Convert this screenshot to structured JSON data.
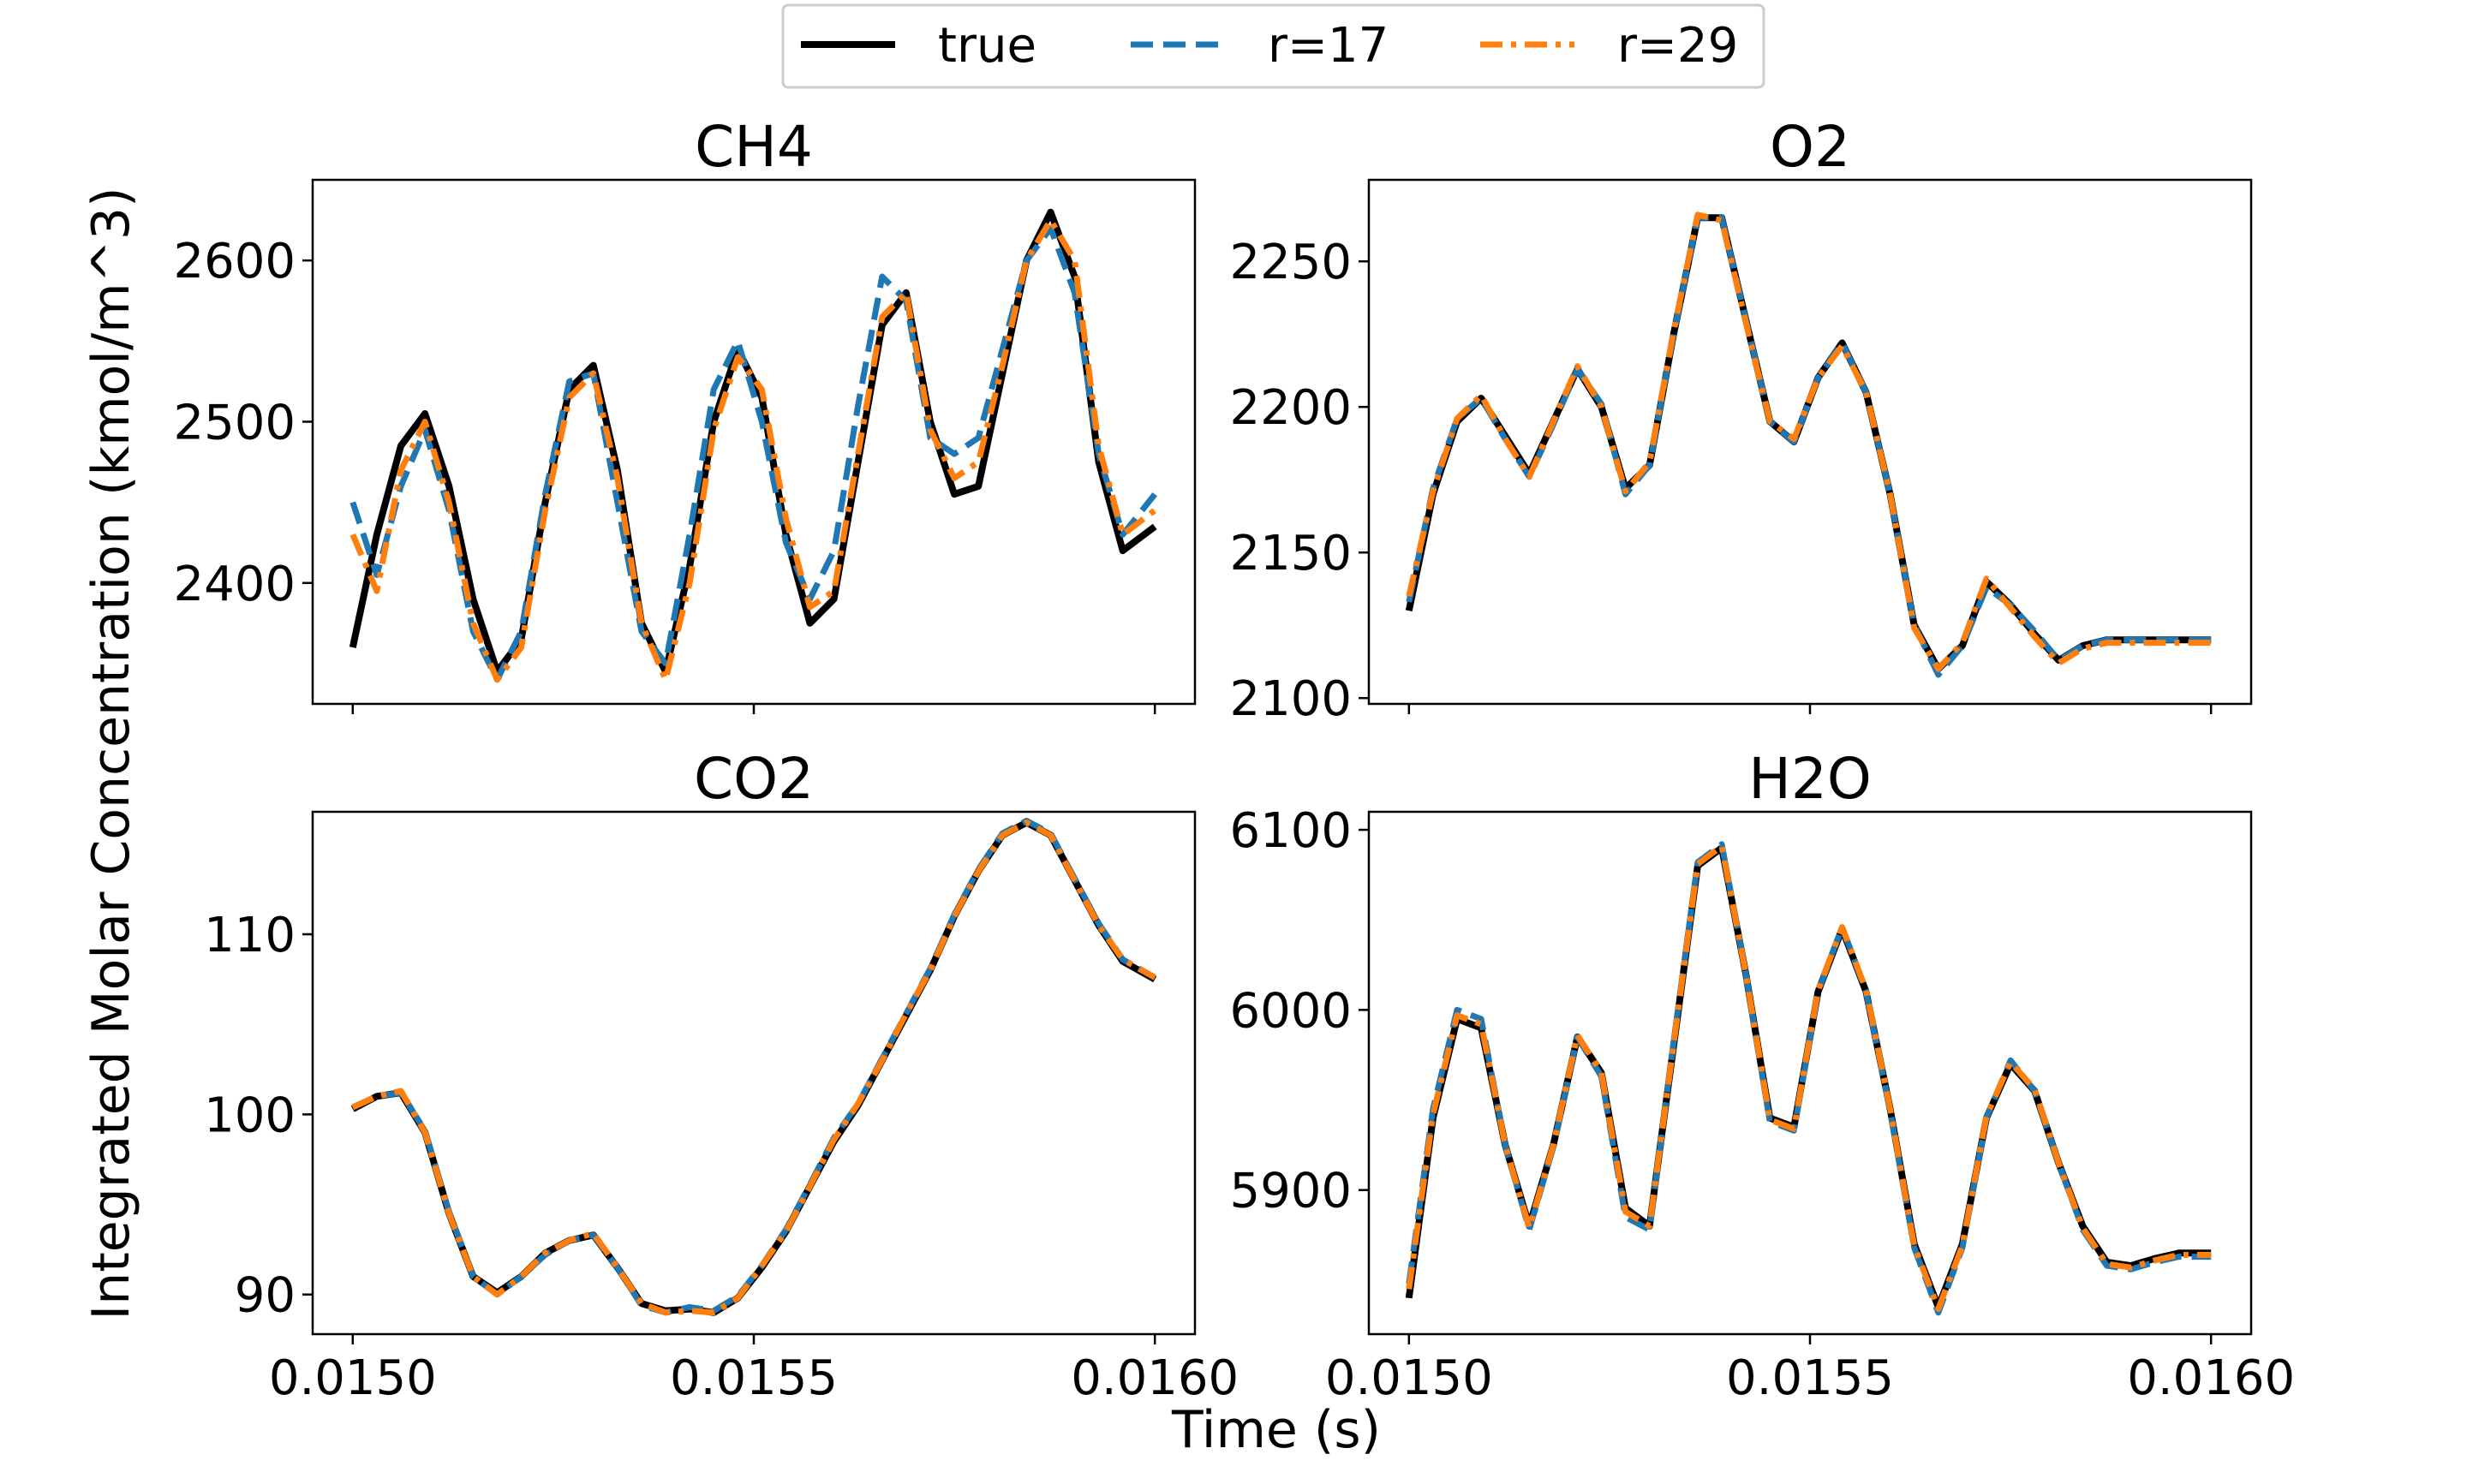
{
  "legend": {
    "entries": [
      {
        "label": "true",
        "color": "#000000",
        "style": "solid"
      },
      {
        "label": "r=17",
        "color": "#1f77b4",
        "style": "dashed"
      },
      {
        "label": "r=29",
        "color": "#ff7f0e",
        "style": "dashdot"
      }
    ],
    "placement": "top-center"
  },
  "ylabel": "Integrated Molar Concentration (kmol/m^3)",
  "xlabel": "Time (s)",
  "chart_data": [
    {
      "type": "line",
      "title": "CH4",
      "xlim": [
        0.01495,
        0.01605
      ],
      "ylim": [
        2325,
        2650
      ],
      "xticks": [
        0.015,
        0.0155,
        0.016
      ],
      "xtick_labels": [],
      "yticks": [
        2400,
        2500,
        2600
      ],
      "ytick_labels": [
        "2400",
        "2500",
        "2600"
      ],
      "x": [
        0.015,
        0.01503,
        0.01506,
        0.01509,
        0.01512,
        0.01515,
        0.01518,
        0.01521,
        0.01524,
        0.01527,
        0.0153,
        0.01533,
        0.01536,
        0.01539,
        0.01542,
        0.01545,
        0.01548,
        0.01551,
        0.01554,
        0.01557,
        0.0156,
        0.01563,
        0.01566,
        0.01569,
        0.01572,
        0.01575,
        0.01578,
        0.01581,
        0.01584,
        0.01587,
        0.0159,
        0.01593,
        0.01596,
        0.016
      ],
      "series": [
        {
          "name": "true",
          "values": [
            2360,
            2430,
            2485,
            2505,
            2460,
            2390,
            2345,
            2365,
            2450,
            2520,
            2535,
            2470,
            2375,
            2345,
            2410,
            2500,
            2545,
            2515,
            2430,
            2375,
            2390,
            2475,
            2560,
            2580,
            2500,
            2455,
            2460,
            2530,
            2600,
            2630,
            2590,
            2475,
            2420,
            2435
          ]
        },
        {
          "name": "r=17",
          "values": [
            2450,
            2405,
            2460,
            2495,
            2445,
            2370,
            2340,
            2370,
            2455,
            2525,
            2530,
            2450,
            2370,
            2350,
            2430,
            2520,
            2550,
            2500,
            2425,
            2390,
            2420,
            2510,
            2590,
            2575,
            2490,
            2480,
            2490,
            2545,
            2600,
            2620,
            2580,
            2480,
            2430,
            2455
          ]
        },
        {
          "name": "r=29",
          "values": [
            2430,
            2395,
            2470,
            2500,
            2450,
            2375,
            2340,
            2360,
            2445,
            2515,
            2530,
            2465,
            2375,
            2340,
            2400,
            2495,
            2540,
            2520,
            2440,
            2385,
            2395,
            2480,
            2565,
            2580,
            2495,
            2465,
            2475,
            2535,
            2600,
            2625,
            2600,
            2485,
            2430,
            2445
          ]
        }
      ]
    },
    {
      "type": "line",
      "title": "O2",
      "xlim": [
        0.01495,
        0.01605
      ],
      "ylim": [
        2098,
        2278
      ],
      "xticks": [
        0.015,
        0.0155,
        0.016
      ],
      "xtick_labels": [],
      "yticks": [
        2100,
        2150,
        2200,
        2250
      ],
      "ytick_labels": [
        "2100",
        "2150",
        "2200",
        "2250"
      ],
      "x": [
        0.015,
        0.01503,
        0.01506,
        0.01509,
        0.01512,
        0.01515,
        0.01518,
        0.01521,
        0.01524,
        0.01527,
        0.0153,
        0.01533,
        0.01536,
        0.01539,
        0.01542,
        0.01545,
        0.01548,
        0.01551,
        0.01554,
        0.01557,
        0.0156,
        0.01563,
        0.01566,
        0.01569,
        0.01572,
        0.01575,
        0.01578,
        0.01581,
        0.01584,
        0.01587,
        0.0159,
        0.01593,
        0.01596,
        0.016
      ],
      "series": [
        {
          "name": "true",
          "values": [
            2130,
            2170,
            2195,
            2203,
            2190,
            2177,
            2195,
            2213,
            2200,
            2172,
            2180,
            2225,
            2265,
            2265,
            2230,
            2195,
            2188,
            2210,
            2222,
            2205,
            2170,
            2125,
            2110,
            2118,
            2140,
            2132,
            2122,
            2113,
            2118,
            2120,
            2120,
            2120,
            2120,
            2120
          ]
        },
        {
          "name": "r=17",
          "values": [
            2133,
            2172,
            2196,
            2203,
            2189,
            2176,
            2194,
            2213,
            2201,
            2170,
            2180,
            2225,
            2265,
            2265,
            2230,
            2195,
            2188,
            2210,
            2222,
            2205,
            2170,
            2125,
            2108,
            2118,
            2138,
            2132,
            2123,
            2113,
            2118,
            2120,
            2120,
            2120,
            2120,
            2120
          ]
        },
        {
          "name": "r=29",
          "values": [
            2135,
            2171,
            2196,
            2204,
            2189,
            2176,
            2195,
            2214,
            2200,
            2171,
            2181,
            2226,
            2266,
            2264,
            2229,
            2195,
            2189,
            2210,
            2221,
            2205,
            2170,
            2124,
            2110,
            2119,
            2141,
            2131,
            2121,
            2112,
            2117,
            2119,
            2119,
            2119,
            2119,
            2119
          ]
        }
      ]
    },
    {
      "type": "line",
      "title": "CO2",
      "xlim": [
        0.01495,
        0.01605
      ],
      "ylim": [
        87.8,
        116.8
      ],
      "xticks": [
        0.015,
        0.0155,
        0.016
      ],
      "xtick_labels": [
        "0.0150",
        "0.0155",
        "0.0160"
      ],
      "yticks": [
        90,
        100,
        110
      ],
      "ytick_labels": [
        "90",
        "100",
        "110"
      ],
      "x": [
        0.015,
        0.01503,
        0.01506,
        0.01509,
        0.01512,
        0.01515,
        0.01518,
        0.01521,
        0.01524,
        0.01527,
        0.0153,
        0.01533,
        0.01536,
        0.01539,
        0.01542,
        0.01545,
        0.01548,
        0.01551,
        0.01554,
        0.01557,
        0.0156,
        0.01563,
        0.01566,
        0.01569,
        0.01572,
        0.01575,
        0.01578,
        0.01581,
        0.01584,
        0.01587,
        0.0159,
        0.01593,
        0.01596,
        0.016
      ],
      "series": [
        {
          "name": "true",
          "values": [
            100.3,
            101.0,
            101.2,
            99.0,
            94.5,
            91.0,
            90.1,
            91.0,
            92.3,
            93.0,
            93.3,
            91.5,
            89.5,
            89.1,
            89.2,
            89.0,
            89.8,
            91.5,
            93.5,
            96.0,
            98.5,
            100.5,
            103.0,
            105.5,
            108.0,
            111.0,
            113.5,
            115.5,
            116.2,
            115.5,
            113.0,
            110.5,
            108.5,
            107.5
          ]
        },
        {
          "name": "r=17",
          "values": [
            100.4,
            101.0,
            101.2,
            99.1,
            94.6,
            91.0,
            90.0,
            91.0,
            92.2,
            93.0,
            93.3,
            91.5,
            89.4,
            89.0,
            89.3,
            89.1,
            89.9,
            91.6,
            93.6,
            96.1,
            98.7,
            100.6,
            103.1,
            105.6,
            108.1,
            111.1,
            113.6,
            115.6,
            116.3,
            115.6,
            113.1,
            110.6,
            108.6,
            107.6
          ]
        },
        {
          "name": "r=29",
          "values": [
            100.4,
            101.0,
            101.3,
            99.0,
            94.5,
            91.0,
            90.0,
            91.0,
            92.3,
            93.0,
            93.4,
            91.5,
            89.5,
            89.0,
            89.1,
            89.0,
            89.8,
            91.6,
            93.5,
            96.0,
            98.6,
            100.6,
            103.0,
            105.6,
            108.0,
            111.0,
            113.5,
            115.5,
            116.2,
            115.5,
            113.0,
            110.5,
            108.6,
            107.6
          ]
        }
      ]
    },
    {
      "type": "line",
      "title": "H2O",
      "xlim": [
        0.01495,
        0.01605
      ],
      "ylim": [
        5820,
        6110
      ],
      "xticks": [
        0.015,
        0.0155,
        0.016
      ],
      "xtick_labels": [
        "0.0150",
        "0.0155",
        "0.0160"
      ],
      "yticks": [
        5900,
        6000,
        6100
      ],
      "ytick_labels": [
        "5900",
        "6000",
        "6100"
      ],
      "x": [
        0.015,
        0.01503,
        0.01506,
        0.01509,
        0.01512,
        0.01515,
        0.01518,
        0.01521,
        0.01524,
        0.01527,
        0.0153,
        0.01533,
        0.01536,
        0.01539,
        0.01542,
        0.01545,
        0.01548,
        0.01551,
        0.01554,
        0.01557,
        0.0156,
        0.01563,
        0.01566,
        0.01569,
        0.01572,
        0.01575,
        0.01578,
        0.01581,
        0.01584,
        0.01587,
        0.0159,
        0.01593,
        0.01596,
        0.016
      ],
      "series": [
        {
          "name": "true",
          "values": [
            5840,
            5940,
            5995,
            5990,
            5925,
            5880,
            5925,
            5985,
            5965,
            5890,
            5880,
            5980,
            6080,
            6090,
            6020,
            5940,
            5935,
            6010,
            6045,
            6010,
            5945,
            5870,
            5835,
            5870,
            5940,
            5970,
            5955,
            5915,
            5880,
            5860,
            5858,
            5862,
            5865,
            5865
          ]
        },
        {
          "name": "r=17",
          "values": [
            5848,
            5945,
            6000,
            5995,
            5925,
            5878,
            5924,
            5985,
            5963,
            5885,
            5878,
            5982,
            6082,
            6092,
            6020,
            5938,
            5933,
            6010,
            6046,
            6010,
            5944,
            5868,
            5832,
            5868,
            5940,
            5972,
            5955,
            5915,
            5878,
            5858,
            5856,
            5860,
            5863,
            5863
          ]
        },
        {
          "name": "r=29",
          "values": [
            5845,
            5942,
            5997,
            5992,
            5925,
            5879,
            5925,
            5986,
            5965,
            5888,
            5880,
            5981,
            6081,
            6091,
            6020,
            5939,
            5934,
            6011,
            6046,
            6011,
            5945,
            5869,
            5834,
            5869,
            5941,
            5971,
            5956,
            5915,
            5879,
            5859,
            5857,
            5861,
            5864,
            5864
          ]
        }
      ]
    }
  ]
}
